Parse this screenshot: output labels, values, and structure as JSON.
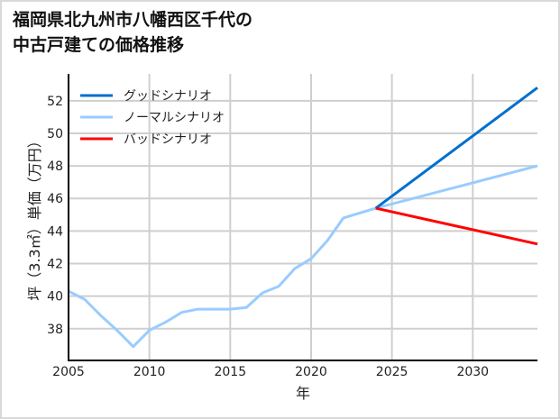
{
  "chart_data": {
    "type": "line",
    "title_lines": [
      "福岡県北九州市八幡西区千代の",
      "中古戸建ての価格推移"
    ],
    "xlabel": "年",
    "ylabel": "坪（3.3㎡）単価（万円）",
    "xlim": [
      2005,
      2034
    ],
    "ylim": [
      36.05,
      53.65
    ],
    "xticks": [
      2005,
      2010,
      2015,
      2020,
      2025,
      2030
    ],
    "yticks": [
      38,
      40,
      42,
      44,
      46,
      48,
      50,
      52
    ],
    "grid": true,
    "legend_position": "top-left",
    "series": [
      {
        "name": "グッドシナリオ",
        "color": "#0070cc",
        "x": [
          2024,
          2034
        ],
        "y": [
          45.4,
          52.8
        ]
      },
      {
        "name": "ノーマルシナリオ",
        "color": "#99ccff",
        "x": [
          2005,
          2006,
          2007,
          2008,
          2009,
          2010,
          2011,
          2012,
          2013,
          2014,
          2015,
          2016,
          2017,
          2018,
          2019,
          2020,
          2021,
          2022,
          2023,
          2024,
          2034
        ],
        "y": [
          40.3,
          39.8,
          38.8,
          37.9,
          36.9,
          37.9,
          38.4,
          39.0,
          39.2,
          39.2,
          39.2,
          39.3,
          40.2,
          40.6,
          41.7,
          42.3,
          43.4,
          44.8,
          45.1,
          45.4,
          48.0
        ]
      },
      {
        "name": "バッドシナリオ",
        "color": "#ff0000",
        "x": [
          2024,
          2034
        ],
        "y": [
          45.4,
          43.2
        ]
      }
    ]
  }
}
